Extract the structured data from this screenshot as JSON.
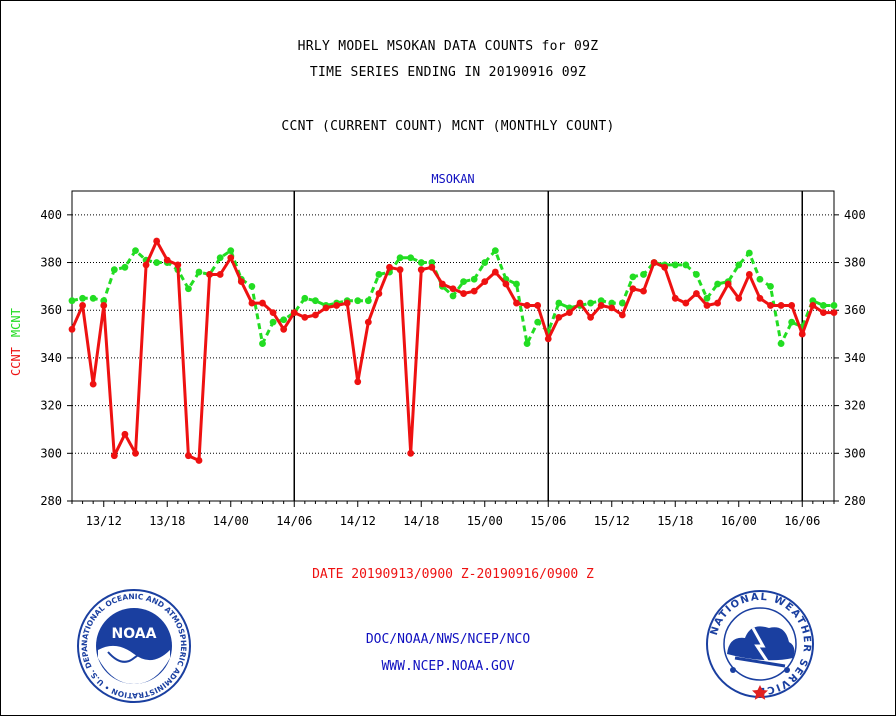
{
  "header": {
    "line1": "HRLY MODEL MSOKAN DATA COUNTS for 09Z",
    "line2": "TIME SERIES ENDING IN 20190916 09Z",
    "line3": "CCNT (CURRENT COUNT) MCNT (MONTHLY COUNT)"
  },
  "footer": {
    "agency": "DOC/NOAA/NWS/NCEP/NCO",
    "website": "WWW.NCEP.NOAA.GOV"
  },
  "logos": {
    "noaa_label": "NOAA",
    "noaa_ring": "NATIONAL OCEANIC AND ATMOSPHERIC ADMINISTRATION • U.S. DEPARTMENT OF COMMERCE •",
    "nws_ring": "NATIONAL WEATHER SERVICE"
  },
  "colors": {
    "ccnt": "#ee1111",
    "mcnt": "#22dd22",
    "title_blue": "#1010c0",
    "xlabel_red": "#ee1111"
  },
  "chart_data": {
    "type": "line",
    "title": "MSOKAN",
    "xlabel": "DATE 20190913/0900 Z-20190916/0900 Z",
    "ylabel_series": [
      "CCNT",
      "MCNT"
    ],
    "ylim": [
      280,
      410
    ],
    "y_ticks": [
      280,
      300,
      320,
      340,
      360,
      380,
      400
    ],
    "grid": "horizontal dotted, vertical solid at 00Z",
    "x_tick_labels": [
      "13/12",
      "13/18",
      "14/00",
      "14/06",
      "14/12",
      "14/18",
      "15/00",
      "15/06",
      "15/12",
      "15/18",
      "16/00",
      "16/06"
    ],
    "x_tick_hours": [
      3,
      9,
      15,
      21,
      27,
      33,
      39,
      45,
      51,
      57,
      63,
      69
    ],
    "day_boundaries_hours": [
      21,
      45,
      69
    ],
    "x_hours_from_0900Z_Sep13": [
      0,
      1,
      2,
      3,
      4,
      5,
      6,
      7,
      8,
      9,
      10,
      11,
      12,
      13,
      14,
      15,
      16,
      17,
      18,
      19,
      20,
      21,
      22,
      23,
      24,
      25,
      26,
      27,
      28,
      29,
      30,
      31,
      32,
      33,
      34,
      35,
      36,
      37,
      38,
      39,
      40,
      41,
      42,
      43,
      44,
      45,
      46,
      47,
      48,
      49,
      50,
      51,
      52,
      53,
      54,
      55,
      56,
      57,
      58,
      59,
      60,
      61,
      62,
      63,
      64,
      65,
      66,
      67,
      68,
      69,
      70,
      71,
      72
    ],
    "series": [
      {
        "name": "CCNT",
        "values": [
          352,
          362,
          329,
          362,
          299,
          308,
          300,
          379,
          389,
          381,
          379,
          299,
          297,
          375,
          375,
          382,
          372,
          363,
          363,
          359,
          352,
          359,
          357,
          358,
          361,
          362,
          363,
          330,
          355,
          367,
          378,
          377,
          300,
          377,
          378,
          371,
          369,
          367,
          368,
          372,
          376,
          371,
          363,
          362,
          362,
          348,
          357,
          359,
          363,
          357,
          362,
          361,
          358,
          369,
          368,
          380,
          378,
          365,
          363,
          367,
          362,
          363,
          371,
          365,
          375,
          365,
          362,
          362,
          362,
          350,
          362,
          359,
          359
        ]
      },
      {
        "name": "MCNT",
        "values": [
          364,
          365,
          365,
          364,
          377,
          378,
          385,
          381,
          380,
          380,
          377,
          369,
          376,
          375,
          382,
          385,
          373,
          370,
          346,
          355,
          356,
          359,
          365,
          364,
          362,
          363,
          364,
          364,
          364,
          375,
          376,
          382,
          382,
          380,
          380,
          370,
          366,
          372,
          373,
          380,
          385,
          373,
          371,
          346,
          355,
          351,
          363,
          361,
          362,
          363,
          364,
          363,
          363,
          374,
          375,
          380,
          379,
          379,
          379,
          375,
          365,
          371,
          372,
          379,
          384,
          373,
          370,
          346,
          355,
          353,
          364,
          362,
          362
        ]
      }
    ]
  }
}
